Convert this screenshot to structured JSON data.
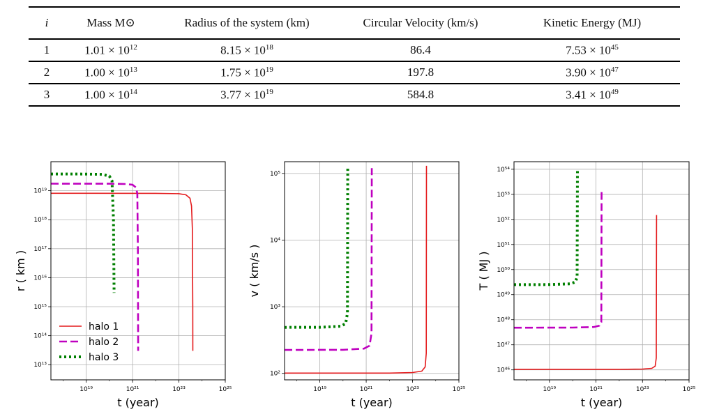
{
  "table": {
    "headers": [
      "i",
      "Mass M⊙",
      "Radius of the system (km)",
      "Circular Velocity (km/s)",
      "Kinetic Energy (MJ)"
    ],
    "rows": [
      {
        "i": "1",
        "mass_m": "1.01 × 10",
        "mass_e": "12",
        "radius_m": "8.15 × 10",
        "radius_e": "18",
        "velocity": "86.4",
        "energy_m": "7.53 × 10",
        "energy_e": "45"
      },
      {
        "i": "2",
        "mass_m": "1.00 × 10",
        "mass_e": "13",
        "radius_m": "1.75 × 10",
        "radius_e": "19",
        "velocity": "197.8",
        "energy_m": "3.90 × 10",
        "energy_e": "47"
      },
      {
        "i": "3",
        "mass_m": "1.00 × 10",
        "mass_e": "14",
        "radius_m": "3.77 × 10",
        "radius_e": "19",
        "velocity": "584.8",
        "energy_m": "3.41 × 10",
        "energy_e": "49"
      }
    ]
  },
  "colors": {
    "halo1": "#e41a1c",
    "halo2": "#bf00bf",
    "halo3": "#007f00"
  },
  "chart_data": [
    {
      "type": "line",
      "xlabel": "t (year)",
      "ylabel": "r ( km )",
      "xscale": "log",
      "yscale": "log",
      "xlim": [
        3e+17,
        1e+25
      ],
      "ylim": [
        3000000000000.0,
        1e+20
      ],
      "xticks": [
        "10¹⁹",
        "10²¹",
        "10²³",
        "10²⁵"
      ],
      "yticks": [
        "10¹³",
        "10¹⁴",
        "10¹⁵",
        "10¹⁶",
        "10¹⁷",
        "10¹⁸",
        "10¹⁹"
      ],
      "grid": true,
      "legend": "bottom-left",
      "series": [
        {
          "name": "halo 1",
          "style": "solid",
          "color": "#e41a1c",
          "x": [
            3e+17,
            1e+22,
            1e+23,
            2e+23,
            3e+23,
            3.5e+23,
            3.8e+23,
            3.95e+23,
            4e+23
          ],
          "y": [
            8.15e+18,
            8.12e+18,
            7.9e+18,
            7.2e+18,
            5.5e+18,
            3e+18,
            5e+17,
            1000000000000000.0,
            30000000000000.0
          ]
        },
        {
          "name": "halo 2",
          "style": "dashed",
          "color": "#bf00bf",
          "x": [
            3e+17,
            1e+20,
            5e+20,
            1e+21,
            1.4e+21,
            1.6e+21,
            1.7e+21,
            1.75e+21
          ],
          "y": [
            1.75e+19,
            1.74e+19,
            1.7e+19,
            1.6e+19,
            1.3e+19,
            8e+18,
            1e+17,
            30000000000000.0
          ]
        },
        {
          "name": "halo 3",
          "style": "dotted",
          "color": "#007f00",
          "x": [
            3e+17,
            1e+19,
            5e+19,
            1e+20,
            1.3e+20,
            1.5e+20,
            1.6e+20
          ],
          "y": [
            3.77e+19,
            3.76e+19,
            3.65e+19,
            3.2e+19,
            2.2e+19,
            1e+18,
            3000000000000000.0
          ]
        }
      ]
    },
    {
      "type": "line",
      "xlabel": "t (year)",
      "ylabel": "v ( km/s )",
      "xscale": "log",
      "yscale": "log",
      "xlim": [
        3e+17,
        1e+25
      ],
      "ylim": [
        80,
        150000.0
      ],
      "xticks": [
        "10¹⁹",
        "10²¹",
        "10²³",
        "10²⁵"
      ],
      "yticks": [
        "10²",
        "10³",
        "10⁴",
        "10⁵"
      ],
      "grid": true,
      "series": [
        {
          "name": "halo 1",
          "style": "solid",
          "color": "#e41a1c",
          "x": [
            3e+17,
            1e+22,
            1e+23,
            2.5e+23,
            3.5e+23,
            3.9e+23,
            4e+23
          ],
          "y": [
            101,
            101,
            103,
            108,
            125,
            200,
            130000.0
          ]
        },
        {
          "name": "halo 2",
          "style": "dashed",
          "color": "#bf00bf",
          "x": [
            3e+17,
            1e+20,
            8e+20,
            1.4e+21,
            1.7e+21,
            1.75e+21
          ],
          "y": [
            225,
            226,
            235,
            260,
            400,
            120000.0
          ]
        },
        {
          "name": "halo 3",
          "style": "dotted",
          "color": "#007f00",
          "x": [
            3e+17,
            1e+19,
            8e+19,
            1.3e+20,
            1.55e+20,
            1.6e+20
          ],
          "y": [
            490,
            492,
            510,
            560,
            800,
            120000.0
          ]
        }
      ]
    },
    {
      "type": "line",
      "xlabel": "t (year)",
      "ylabel": "T ( MJ )",
      "xscale": "log",
      "yscale": "log",
      "xlim": [
        3e+17,
        1e+25
      ],
      "ylim": [
        4e+45,
        2e+54
      ],
      "xticks": [
        "10¹⁹",
        "10²¹",
        "10²³",
        "10²⁵"
      ],
      "yticks": [
        "10⁴⁶",
        "10⁴⁷",
        "10⁴⁸",
        "10⁴⁹",
        "10⁵⁰",
        "10⁵¹",
        "10⁵²",
        "10⁵³",
        "10⁵⁴"
      ],
      "grid": true,
      "series": [
        {
          "name": "halo 1",
          "style": "solid",
          "color": "#e41a1c",
          "x": [
            3e+17,
            1e+22,
            1e+23,
            2.5e+23,
            3.5e+23,
            3.9e+23,
            4e+23
          ],
          "y": [
            1.05e+46,
            1.05e+46,
            1.07e+46,
            1.15e+46,
            1.4e+46,
            3e+46,
            1.5e+52
          ]
        },
        {
          "name": "halo 2",
          "style": "dashed",
          "color": "#bf00bf",
          "x": [
            3e+17,
            1e+20,
            8e+20,
            1.4e+21,
            1.7e+21,
            1.75e+21
          ],
          "y": [
            4.8e+47,
            4.85e+47,
            5.1e+47,
            5.8e+47,
            8e+47,
            1.5e+53
          ]
        },
        {
          "name": "halo 3",
          "style": "dotted",
          "color": "#007f00",
          "x": [
            3e+17,
            1e+19,
            8e+19,
            1.3e+20,
            1.55e+20,
            1.6e+20
          ],
          "y": [
            2.5e+49,
            2.52e+49,
            2.7e+49,
            3.2e+49,
            5e+49,
            1e+54
          ]
        }
      ]
    }
  ]
}
